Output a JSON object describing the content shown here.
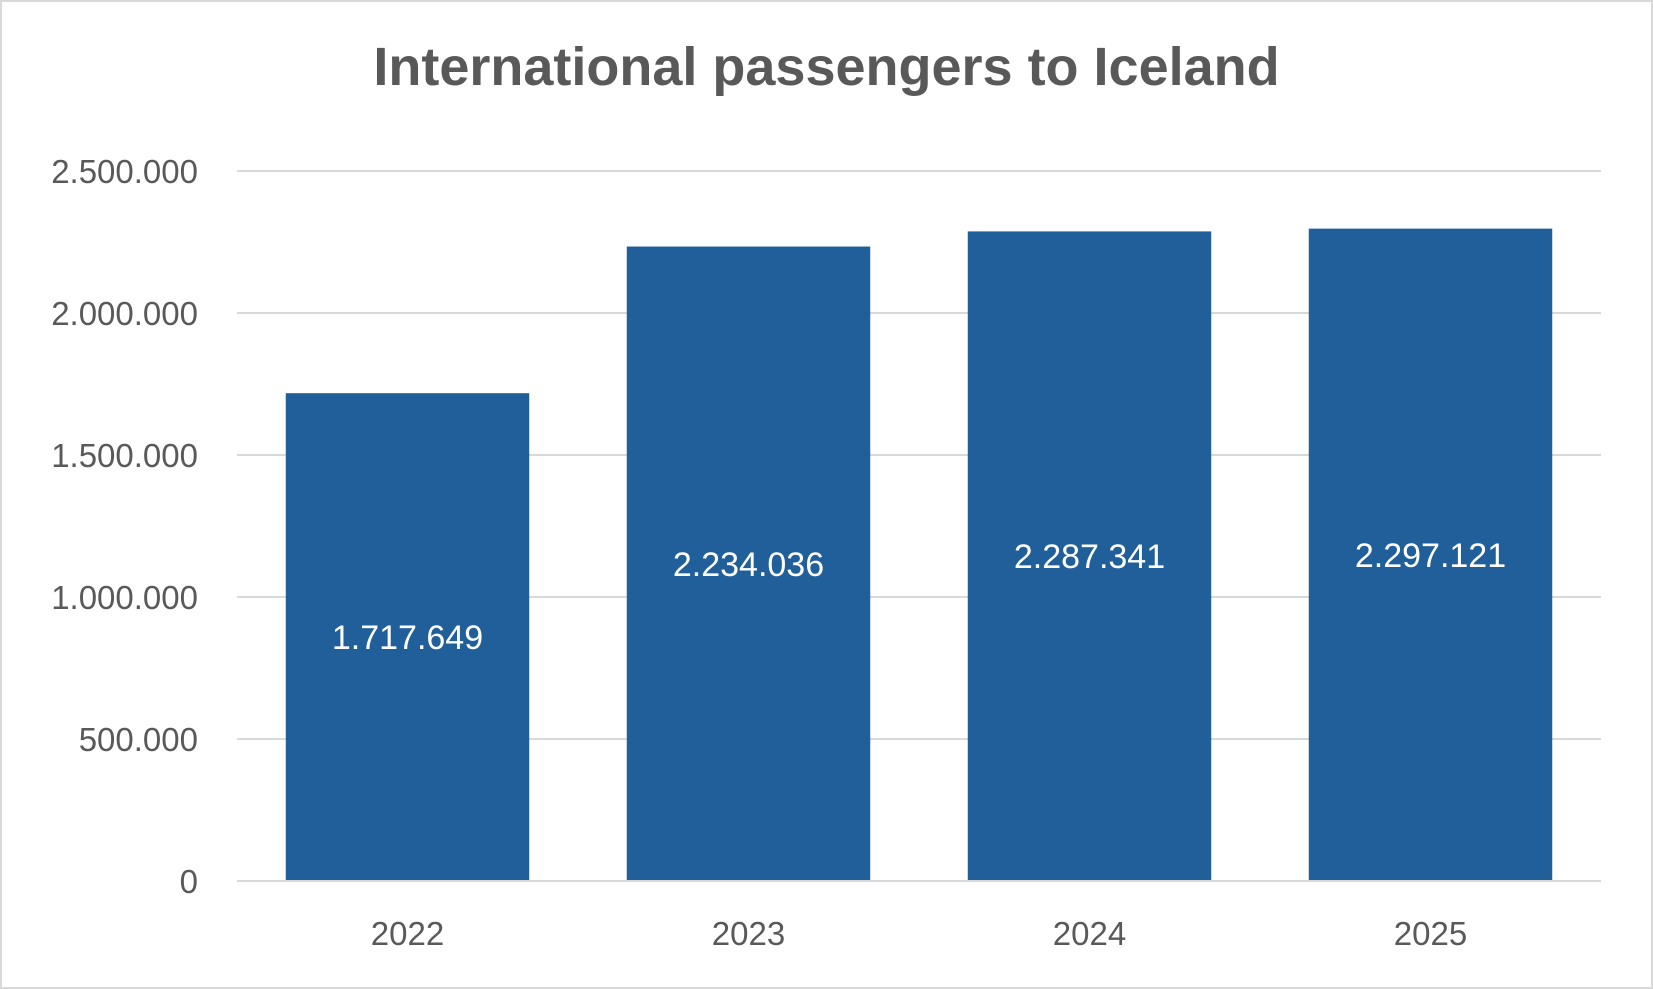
{
  "chart_data": {
    "type": "bar",
    "title": "International passengers to Iceland",
    "xlabel": "",
    "ylabel": "",
    "categories": [
      "2022",
      "2023",
      "2024",
      "2025"
    ],
    "values": [
      1717649,
      2234036,
      2287341,
      2297121
    ],
    "data_labels": [
      "1.717.649",
      "2.234.036",
      "2.287.341",
      "2.297.121"
    ],
    "ylim": [
      0,
      2500000
    ],
    "y_ticks": [
      0,
      500000,
      1000000,
      1500000,
      2000000,
      2500000
    ],
    "y_tick_labels": [
      "0",
      "500.000",
      "1.000.000",
      "1.500.000",
      "2.000.000",
      "2.500.000"
    ],
    "grid": true,
    "legend": "none",
    "colors": {
      "bar": "#215f9a",
      "gridline": "#d9d9d9",
      "text": "#595959",
      "data_label": "#ffffff"
    }
  }
}
